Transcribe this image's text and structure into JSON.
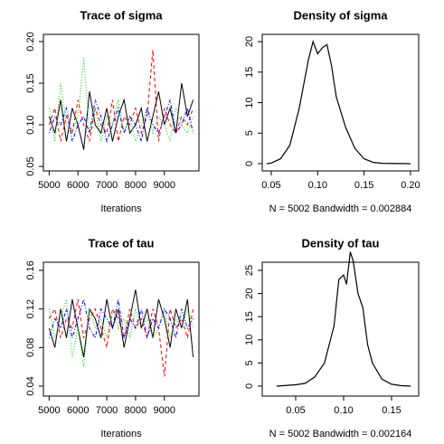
{
  "chart_data": [
    {
      "type": "trace",
      "title": "Trace of sigma",
      "xlabel": "Iterations",
      "xlim": [
        4800,
        10200
      ],
      "ylim": [
        0.0446,
        0.2087
      ],
      "xticks": [
        5000,
        6000,
        7000,
        8000,
        9000
      ],
      "yticks": [
        0.05,
        {
          "value": 0.1,
          "label": "0.10"
        },
        0.15,
        {
          "value": 0.2,
          "label": "0.20"
        }
      ],
      "x": [
        5000,
        5200,
        5400,
        5600,
        5800,
        6000,
        6200,
        6400,
        6600,
        6800,
        7000,
        7200,
        7400,
        7600,
        7800,
        8000,
        8200,
        8400,
        8600,
        8800,
        9000,
        9200,
        9400,
        9600,
        9800,
        10000
      ],
      "series": [
        {
          "color": "#000000",
          "linestyle": "solid",
          "values": [
            0.11,
            0.09,
            0.13,
            0.08,
            0.12,
            0.1,
            0.07,
            0.14,
            0.1,
            0.09,
            0.12,
            0.08,
            0.11,
            0.13,
            0.09,
            0.1,
            0.12,
            0.08,
            0.11,
            0.14,
            0.1,
            0.12,
            0.09,
            0.15,
            0.11,
            0.13
          ]
        },
        {
          "color": "#ff0000",
          "linestyle": "dashed",
          "values": [
            0.1,
            0.12,
            0.08,
            0.11,
            0.09,
            0.13,
            0.1,
            0.08,
            0.12,
            0.1,
            0.09,
            0.13,
            0.08,
            0.11,
            0.1,
            0.12,
            0.09,
            0.11,
            0.19,
            0.08,
            0.12,
            0.1,
            0.09,
            0.11,
            0.1,
            0.12
          ]
        },
        {
          "color": "#00cd00",
          "linestyle": "dotted",
          "values": [
            0.12,
            0.08,
            0.15,
            0.1,
            0.09,
            0.11,
            0.18,
            0.09,
            0.12,
            0.08,
            0.11,
            0.1,
            0.13,
            0.09,
            0.11,
            0.08,
            0.1,
            0.12,
            0.09,
            0.11,
            0.1,
            0.08,
            0.12,
            0.1,
            0.09,
            0.11
          ]
        },
        {
          "color": "#0000ff",
          "linestyle": "dotdash",
          "values": [
            0.09,
            0.11,
            0.1,
            0.12,
            0.08,
            0.1,
            0.11,
            0.09,
            0.13,
            0.11,
            0.08,
            0.1,
            0.12,
            0.09,
            0.11,
            0.1,
            0.08,
            0.12,
            0.1,
            0.09,
            0.11,
            0.13,
            0.09,
            0.1,
            0.12,
            0.09
          ]
        }
      ]
    },
    {
      "type": "density",
      "title": "Density of sigma",
      "xlabel": "N = 5002   Bandwidth = 0.002884",
      "xlim": [
        0.0403,
        0.2088
      ],
      "ylim": [
        -1.19,
        21.19
      ],
      "xticks": [
        0.05,
        {
          "value": 0.1,
          "label": "0.10"
        },
        0.15,
        {
          "value": 0.2,
          "label": "0.20"
        }
      ],
      "yticks": [
        0,
        5,
        10,
        15,
        20
      ],
      "x": [
        0.045,
        0.05,
        0.06,
        0.07,
        0.08,
        0.09,
        0.095,
        0.1,
        0.105,
        0.11,
        0.115,
        0.12,
        0.13,
        0.14,
        0.15,
        0.16,
        0.17,
        0.2
      ],
      "series": [
        {
          "color": "#000000",
          "linestyle": "solid",
          "values": [
            0,
            0.1,
            0.8,
            3,
            9,
            17,
            20,
            18,
            19,
            19.5,
            16,
            11,
            6,
            2.5,
            0.8,
            0.2,
            0.05,
            0
          ]
        }
      ]
    },
    {
      "type": "trace",
      "title": "Trace of tau",
      "xlabel": "Iterations",
      "xlim": [
        4800,
        10200
      ],
      "ylim": [
        0.0297,
        0.1684
      ],
      "xticks": [
        5000,
        6000,
        7000,
        8000,
        9000
      ],
      "yticks": [
        0.04,
        0.08,
        0.12,
        0.16
      ],
      "x": [
        5000,
        5200,
        5400,
        5600,
        5800,
        6000,
        6200,
        6400,
        6600,
        6800,
        7000,
        7200,
        7400,
        7600,
        7800,
        8000,
        8200,
        8400,
        8600,
        8800,
        9000,
        9200,
        9400,
        9600,
        9800,
        10000
      ],
      "series": [
        {
          "color": "#000000",
          "linestyle": "solid",
          "values": [
            0.1,
            0.08,
            0.12,
            0.09,
            0.13,
            0.1,
            0.07,
            0.12,
            0.11,
            0.09,
            0.13,
            0.1,
            0.12,
            0.08,
            0.11,
            0.14,
            0.1,
            0.12,
            0.09,
            0.13,
            0.11,
            0.08,
            0.12,
            0.1,
            0.13,
            0.07
          ]
        },
        {
          "color": "#ff0000",
          "linestyle": "dashed",
          "values": [
            0.11,
            0.12,
            0.09,
            0.11,
            0.1,
            0.13,
            0.09,
            0.11,
            0.12,
            0.1,
            0.08,
            0.12,
            0.11,
            0.09,
            0.12,
            0.1,
            0.11,
            0.09,
            0.12,
            0.1,
            0.05,
            0.12,
            0.1,
            0.11,
            0.09,
            0.12
          ]
        },
        {
          "color": "#00cd00",
          "linestyle": "dotted",
          "values": [
            0.12,
            0.09,
            0.11,
            0.13,
            0.07,
            0.1,
            0.06,
            0.12,
            0.1,
            0.11,
            0.09,
            0.12,
            0.1,
            0.11,
            0.09,
            0.12,
            0.1,
            0.11,
            0.09,
            0.1,
            0.12,
            0.09,
            0.11,
            0.1,
            0.12,
            0.1
          ]
        },
        {
          "color": "#0000ff",
          "linestyle": "dotdash",
          "values": [
            0.09,
            0.11,
            0.1,
            0.12,
            0.09,
            0.11,
            0.13,
            0.1,
            0.09,
            0.12,
            0.11,
            0.1,
            0.13,
            0.09,
            0.11,
            0.1,
            0.12,
            0.09,
            0.11,
            0.1,
            0.12,
            0.11,
            0.09,
            0.12,
            0.1,
            0.11
          ]
        }
      ]
    },
    {
      "type": "density",
      "title": "Density of tau",
      "xlabel": "N = 5002   Bandwidth = 0.002164",
      "xlim": [
        0.0151,
        0.1783
      ],
      "ylim": [
        -2.15,
        26.76
      ],
      "xticks": [
        0.05,
        {
          "value": 0.1,
          "label": "0.10"
        },
        0.15
      ],
      "yticks": [
        0,
        5,
        10,
        15,
        20,
        25
      ],
      "x": [
        0.03,
        0.05,
        0.06,
        0.07,
        0.08,
        0.09,
        0.095,
        0.1,
        0.103,
        0.107,
        0.11,
        0.115,
        0.12,
        0.125,
        0.13,
        0.14,
        0.15,
        0.16,
        0.17
      ],
      "series": [
        {
          "color": "#000000",
          "linestyle": "solid",
          "values": [
            0,
            0.3,
            0.6,
            2,
            5,
            13,
            23,
            24,
            22,
            29,
            27,
            20,
            17,
            9,
            5,
            1.5,
            0.4,
            0.1,
            0
          ]
        }
      ]
    }
  ]
}
